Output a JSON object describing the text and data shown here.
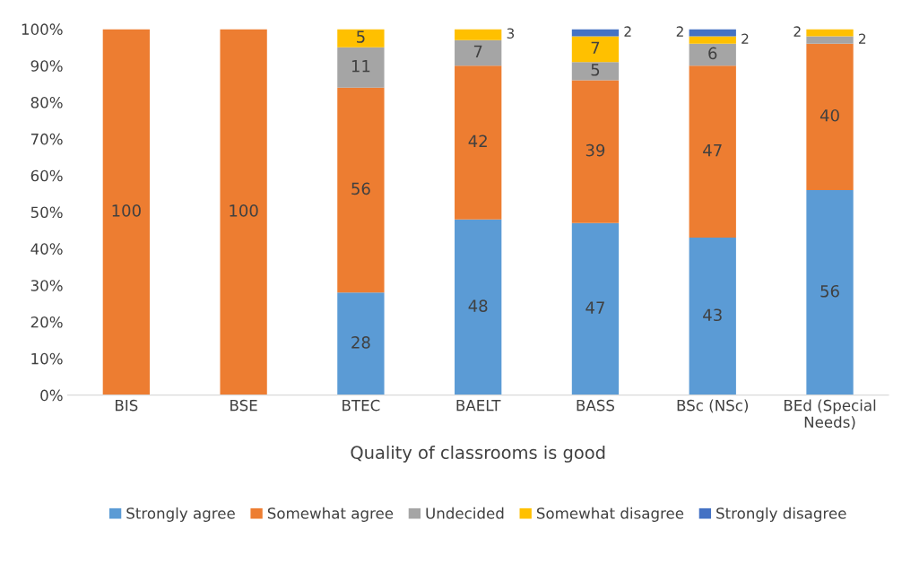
{
  "chart_data": {
    "type": "bar",
    "stacked": true,
    "xlabel": "Quality of classrooms is good",
    "categories": [
      "BIS",
      "BSE",
      "BTEC",
      "BAELT",
      "BASS",
      "BSc (NSc)",
      "BEd (Special\nNeeds)"
    ],
    "series": [
      {
        "name": "Strongly agree",
        "color": "#5b9bd5",
        "values": [
          null,
          null,
          28,
          48,
          47,
          43,
          56
        ]
      },
      {
        "name": "Somewhat agree",
        "color": "#ed7d31",
        "values": [
          100,
          100,
          56,
          42,
          39,
          47,
          40
        ]
      },
      {
        "name": "Undecided",
        "color": "#a5a5a5",
        "values": [
          null,
          null,
          11,
          7,
          5,
          6,
          2
        ]
      },
      {
        "name": "Somewhat disagree",
        "color": "#ffc000",
        "values": [
          null,
          null,
          5,
          3,
          7,
          2,
          2
        ]
      },
      {
        "name": "Strongly disagree",
        "color": "#4472c4",
        "values": [
          null,
          null,
          null,
          null,
          2,
          2,
          null
        ]
      }
    ],
    "ylim": [
      0,
      100
    ],
    "yticks": [
      {
        "value": 0,
        "label": "0%"
      },
      {
        "value": 10,
        "label": "10%"
      },
      {
        "value": 20,
        "label": "20%"
      },
      {
        "value": 30,
        "label": "30%"
      },
      {
        "value": 40,
        "label": "40%"
      },
      {
        "value": 50,
        "label": "50%"
      },
      {
        "value": 60,
        "label": "60%"
      },
      {
        "value": 70,
        "label": "70%"
      },
      {
        "value": 80,
        "label": "80%"
      },
      {
        "value": 90,
        "label": "90%"
      },
      {
        "value": 100,
        "label": "100%"
      }
    ],
    "data_labels": true,
    "legend": "bottom",
    "grid": false
  }
}
